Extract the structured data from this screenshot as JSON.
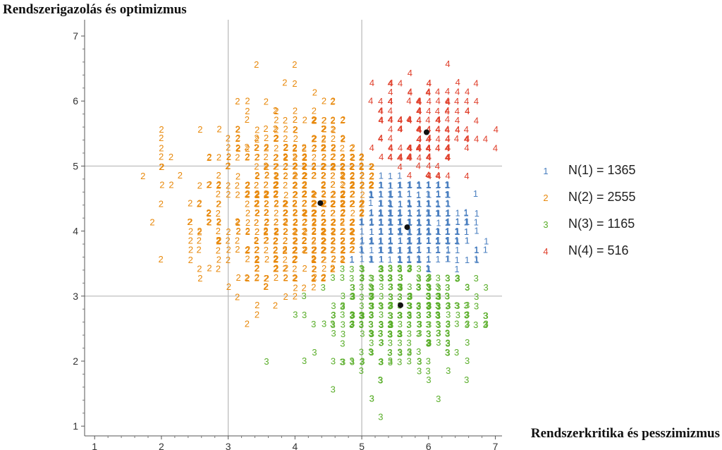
{
  "chart_data": {
    "type": "scatter",
    "ylabel": "Rendszerigazolás és optimizmus",
    "xlabel": "Rendszerkritika és pesszimizmus",
    "xlim": [
      0.85,
      7.1
    ],
    "ylim": [
      0.85,
      7.25
    ],
    "x_ticks": [
      "1",
      "2",
      "3",
      "4",
      "5",
      "6",
      "7"
    ],
    "y_ticks": [
      "1",
      "2",
      "3",
      "4",
      "5",
      "6",
      "7"
    ],
    "grid": {
      "x": [
        3,
        5
      ],
      "y": [
        3,
        5
      ]
    },
    "legend_position": "right",
    "series": [
      {
        "name": "1",
        "legend": "N(1) = 1365",
        "count": 1365,
        "color": "#4a7fc0",
        "centroid": [
          5.68,
          4.06
        ]
      },
      {
        "name": "2",
        "legend": "N(2) = 2555",
        "count": 2555,
        "color": "#e8890c",
        "centroid": [
          4.38,
          4.43
        ]
      },
      {
        "name": "3",
        "legend": "N(3) = 1165",
        "count": 1165,
        "color": "#5aae2a",
        "centroid": [
          5.58,
          2.86
        ]
      },
      {
        "name": "4",
        "legend": "N(4) = 516",
        "count": 516,
        "color": "#e0402c",
        "centroid": [
          5.97,
          5.52
        ]
      }
    ],
    "centroid_color": "#111111"
  }
}
